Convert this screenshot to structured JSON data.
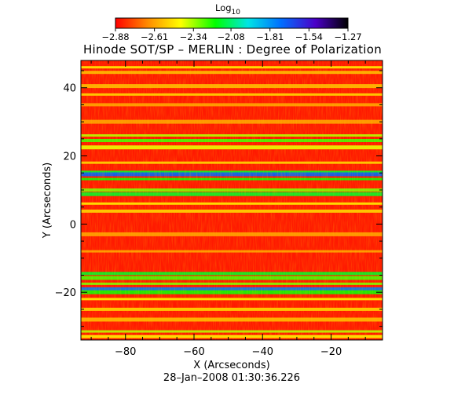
{
  "chart_data": {
    "type": "heatmap",
    "title": "Hinode SOT/SP – MERLIN : Degree of Polarization",
    "xlabel": "X (Arcseconds)",
    "ylabel": "Y (Arcseconds)",
    "timestamp": "28–Jan–2008 01:30:36.226",
    "xlim": [
      -93,
      -5
    ],
    "ylim": [
      -34,
      48
    ],
    "x_ticks": [
      -80,
      -60,
      -40,
      -20
    ],
    "x_tick_labels": [
      "−80",
      "−60",
      "−40",
      "−20"
    ],
    "y_ticks": [
      -20,
      0,
      20,
      40
    ],
    "y_tick_labels": [
      "−20",
      "0",
      "20",
      "40"
    ],
    "colorbar": {
      "label_main": "Log",
      "label_sub": "10",
      "ticks": [
        -2.88,
        -2.61,
        -2.34,
        -2.08,
        -1.81,
        -1.54,
        -1.27
      ],
      "tick_labels": [
        "−2.88",
        "−2.61",
        "−2.34",
        "−2.08",
        "−1.81",
        "−1.54",
        "−1.27"
      ],
      "range": [
        -2.88,
        -1.27
      ],
      "colors": [
        "#ff0000",
        "#ff8c00",
        "#ffff00",
        "#00ff00",
        "#00e5e5",
        "#0070ff",
        "#4b00c8",
        "#000000"
      ]
    },
    "bands": [
      {
        "y": 46,
        "level": -2.45
      },
      {
        "y": 44.5,
        "level": -2.55
      },
      {
        "y": 40.5,
        "level": -2.55
      },
      {
        "y": 38,
        "level": -2.5
      },
      {
        "y": 35,
        "level": -2.6
      },
      {
        "y": 30,
        "level": -2.6
      },
      {
        "y": 26,
        "level": -2.35
      },
      {
        "y": 24.5,
        "level": -2.25
      },
      {
        "y": 22.5,
        "level": -2.4
      },
      {
        "y": 18,
        "level": -2.5
      },
      {
        "y": 15.2,
        "level": -2.15
      },
      {
        "y": 14.6,
        "level": -1.7
      },
      {
        "y": 13.2,
        "level": -2.2
      },
      {
        "y": 10,
        "level": -2.3
      },
      {
        "y": 8.8,
        "level": -2.15
      },
      {
        "y": 6,
        "level": -2.45
      },
      {
        "y": 3.8,
        "level": -2.5
      },
      {
        "y": -3,
        "level": -2.6
      },
      {
        "y": -8,
        "level": -2.6
      },
      {
        "y": -14.5,
        "level": -2.15
      },
      {
        "y": -15.8,
        "level": -2.25
      },
      {
        "y": -17.5,
        "level": -2.3
      },
      {
        "y": -19,
        "level": -1.75
      },
      {
        "y": -20,
        "level": -2.2
      },
      {
        "y": -22,
        "level": -2.45
      },
      {
        "y": -25,
        "level": -2.5
      },
      {
        "y": -28,
        "level": -2.55
      },
      {
        "y": -31.5,
        "level": -2.35
      },
      {
        "y": -33,
        "level": -2.45
      }
    ]
  }
}
